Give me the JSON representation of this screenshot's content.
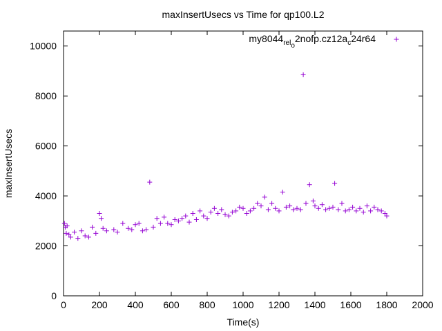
{
  "chart_data": {
    "type": "scatter",
    "title": "maxInsertUsecs vs Time for qp100.L2",
    "xlabel": "Time(s)",
    "ylabel": "maxInsertUsecs",
    "xlim": [
      0,
      2000
    ],
    "ylim": [
      0,
      10600
    ],
    "xticks": [
      0,
      200,
      400,
      600,
      800,
      1000,
      1200,
      1400,
      1600,
      1800,
      2000
    ],
    "yticks": [
      0,
      2000,
      4000,
      6000,
      8000,
      10000
    ],
    "grid": false,
    "legend": {
      "position": "top-right",
      "text_parts": [
        "my8044",
        "rel",
        "o",
        "2nofp.cz12a",
        "c",
        "24r64"
      ]
    },
    "marker_color": "#9400d3",
    "series": [
      {
        "name": "my8044_rel_o2nofp.cz12a_c24r64",
        "marker": "+",
        "points": [
          [
            5,
            2900
          ],
          [
            10,
            2750
          ],
          [
            15,
            2500
          ],
          [
            20,
            2800
          ],
          [
            30,
            2450
          ],
          [
            40,
            2350
          ],
          [
            60,
            2550
          ],
          [
            80,
            2300
          ],
          [
            100,
            2600
          ],
          [
            120,
            2400
          ],
          [
            140,
            2350
          ],
          [
            160,
            2750
          ],
          [
            180,
            2500
          ],
          [
            200,
            3300
          ],
          [
            210,
            3100
          ],
          [
            220,
            2700
          ],
          [
            240,
            2600
          ],
          [
            280,
            2650
          ],
          [
            300,
            2550
          ],
          [
            330,
            2900
          ],
          [
            360,
            2700
          ],
          [
            380,
            2650
          ],
          [
            400,
            2850
          ],
          [
            420,
            2900
          ],
          [
            440,
            2600
          ],
          [
            460,
            2650
          ],
          [
            480,
            4550
          ],
          [
            500,
            2750
          ],
          [
            520,
            3100
          ],
          [
            540,
            2900
          ],
          [
            560,
            3150
          ],
          [
            580,
            2900
          ],
          [
            600,
            2850
          ],
          [
            620,
            3050
          ],
          [
            640,
            3000
          ],
          [
            660,
            3100
          ],
          [
            680,
            3200
          ],
          [
            700,
            2950
          ],
          [
            720,
            3300
          ],
          [
            740,
            3050
          ],
          [
            760,
            3400
          ],
          [
            780,
            3200
          ],
          [
            800,
            3100
          ],
          [
            820,
            3350
          ],
          [
            840,
            3500
          ],
          [
            860,
            3300
          ],
          [
            880,
            3450
          ],
          [
            900,
            3250
          ],
          [
            920,
            3200
          ],
          [
            940,
            3350
          ],
          [
            960,
            3400
          ],
          [
            980,
            3550
          ],
          [
            1000,
            3500
          ],
          [
            1020,
            3300
          ],
          [
            1040,
            3400
          ],
          [
            1060,
            3500
          ],
          [
            1080,
            3700
          ],
          [
            1100,
            3600
          ],
          [
            1120,
            3950
          ],
          [
            1140,
            3450
          ],
          [
            1160,
            3700
          ],
          [
            1180,
            3500
          ],
          [
            1200,
            3400
          ],
          [
            1220,
            4150
          ],
          [
            1240,
            3550
          ],
          [
            1260,
            3600
          ],
          [
            1280,
            3450
          ],
          [
            1300,
            3500
          ],
          [
            1320,
            3450
          ],
          [
            1335,
            8850
          ],
          [
            1350,
            3700
          ],
          [
            1370,
            4450
          ],
          [
            1390,
            3800
          ],
          [
            1400,
            3600
          ],
          [
            1420,
            3500
          ],
          [
            1440,
            3650
          ],
          [
            1460,
            3450
          ],
          [
            1480,
            3500
          ],
          [
            1500,
            3550
          ],
          [
            1510,
            4500
          ],
          [
            1530,
            3450
          ],
          [
            1550,
            3700
          ],
          [
            1570,
            3400
          ],
          [
            1590,
            3450
          ],
          [
            1610,
            3550
          ],
          [
            1630,
            3400
          ],
          [
            1650,
            3500
          ],
          [
            1670,
            3350
          ],
          [
            1690,
            3600
          ],
          [
            1710,
            3400
          ],
          [
            1730,
            3550
          ],
          [
            1750,
            3450
          ],
          [
            1770,
            3400
          ],
          [
            1790,
            3300
          ],
          [
            1800,
            3200
          ]
        ]
      }
    ]
  }
}
